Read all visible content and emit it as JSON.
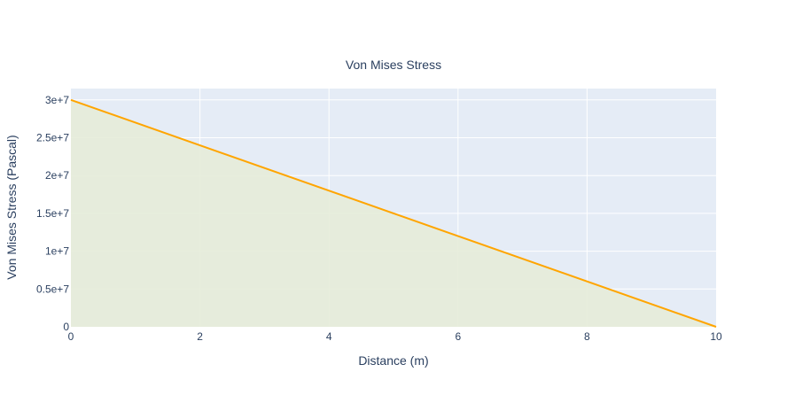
{
  "chart_data": {
    "type": "area",
    "title": "Von Mises Stress",
    "xlabel": "Distance (m)",
    "ylabel": "Von Mises Stress (Pascal)",
    "xlim": [
      0,
      10
    ],
    "ylim": [
      0,
      31500000
    ],
    "x_ticks": [
      0,
      2,
      4,
      6,
      8,
      10
    ],
    "x_tick_labels": [
      "0",
      "2",
      "4",
      "6",
      "8",
      "10"
    ],
    "y_ticks": [
      0,
      5000000,
      10000000,
      15000000,
      20000000,
      25000000,
      30000000
    ],
    "y_tick_labels": [
      "0",
      "0.5e+7",
      "1e+7",
      "1.5e+7",
      "2e+7",
      "2.5e+7",
      "3e+7"
    ],
    "grid": true,
    "legend": "none",
    "series": [
      {
        "x": [
          0,
          10
        ],
        "y": [
          30000000,
          0
        ],
        "fill": "tozeroy",
        "line_color": "#ffa500",
        "fill_color": "#e5ecd9"
      }
    ]
  },
  "colors": {
    "plot_background": "#e5ecf6",
    "grid": "#ffffff",
    "text": "#2a3f5f"
  }
}
